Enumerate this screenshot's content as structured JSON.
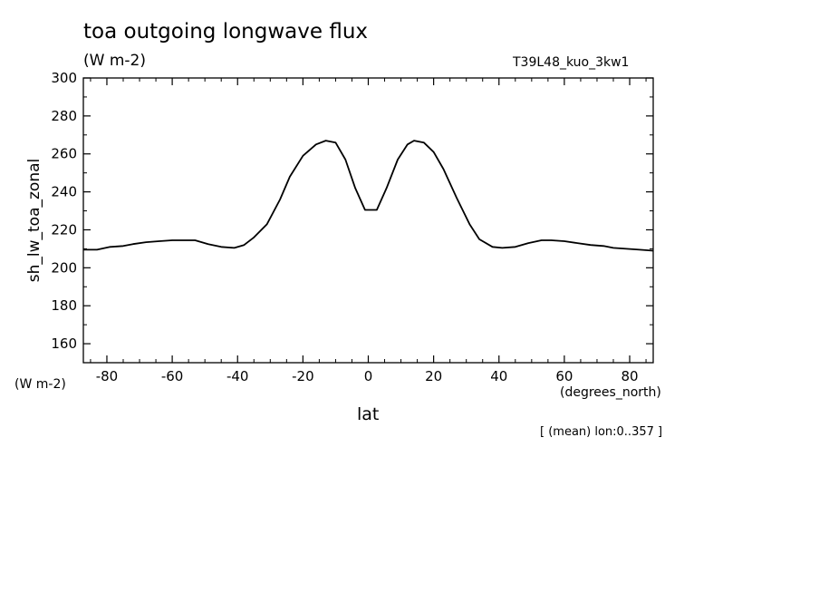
{
  "chart_data": {
    "type": "line",
    "title": "toa outgoing longwave flux",
    "units": "(W m-2)",
    "run_label": "T39L48_kuo_3kw1",
    "ylabel": "sh_lw_toa_zonal",
    "y_units": "(W m-2)",
    "xlabel": "lat",
    "x_units": "(degrees_north)",
    "note": "[ (mean) lon:0..357 ]",
    "xlim": [
      -87.2,
      87.2
    ],
    "ylim": [
      150,
      300
    ],
    "xticks": [
      -80,
      -60,
      -40,
      -20,
      0,
      20,
      40,
      60,
      80
    ],
    "yticks": [
      160,
      180,
      200,
      220,
      240,
      260,
      280,
      300
    ],
    "x_tick_labels": [
      "-80",
      "-60",
      "-40",
      "-20",
      "0",
      "20",
      "40",
      "60",
      "80"
    ],
    "y_tick_labels": [
      "160",
      "180",
      "200",
      "220",
      "240",
      "260",
      "280",
      "300"
    ],
    "grid": false,
    "series": [
      {
        "x": [
          -87.2,
          -83,
          -79,
          -75,
          -72,
          -68,
          -64,
          -60,
          -56,
          -53,
          -49,
          -45,
          -41,
          -38,
          -35,
          -31,
          -27,
          -24,
          -20,
          -16,
          -13,
          -10,
          -7,
          -4,
          -1,
          2.6,
          5.6,
          9,
          12,
          14,
          17,
          20,
          23,
          27,
          31,
          34,
          38,
          41,
          45,
          49,
          53,
          56,
          60,
          64,
          68,
          72,
          75,
          79,
          83,
          87.2
        ],
        "y": [
          209.5,
          209.5,
          211,
          211.5,
          212.5,
          213.5,
          214,
          214.5,
          214.5,
          214.5,
          212.5,
          211,
          210.5,
          212,
          216,
          223,
          236,
          248,
          259,
          265,
          267,
          266,
          257,
          242,
          230.5,
          230.5,
          242,
          257,
          265,
          267,
          266,
          261,
          252,
          237,
          223,
          215,
          211,
          210.5,
          211,
          213,
          214.5,
          214.5,
          214,
          213,
          212,
          211.5,
          210.5,
          210,
          209.5,
          209
        ]
      }
    ]
  }
}
